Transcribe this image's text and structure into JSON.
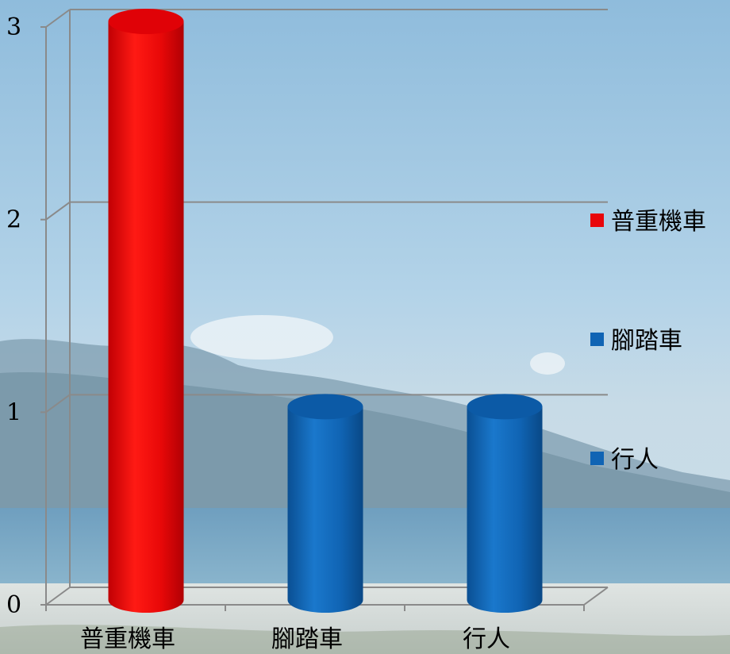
{
  "chart_data": {
    "type": "bar",
    "categories": [
      "普重機車",
      "腳踏車",
      "行人"
    ],
    "series": [
      {
        "name": "普重機車",
        "values": [
          3,
          null,
          null
        ],
        "color": "#e8060b"
      },
      {
        "name": "腳踏車",
        "values": [
          null,
          1,
          null
        ],
        "color": "#1064b4"
      },
      {
        "name": "行人",
        "values": [
          null,
          null,
          1
        ],
        "color": "#1064b4"
      }
    ],
    "bar_values": [
      3,
      1,
      1
    ],
    "bar_colors": [
      "#e8060b",
      "#1064b4",
      "#1064b4"
    ],
    "ylim": [
      0,
      3
    ],
    "yticks": [
      "0",
      "1",
      "2",
      "3"
    ],
    "grid": true,
    "legend_position": "right",
    "bar_shape": "cylinder",
    "background": "photo of coastline with mountains, sea and sky"
  }
}
